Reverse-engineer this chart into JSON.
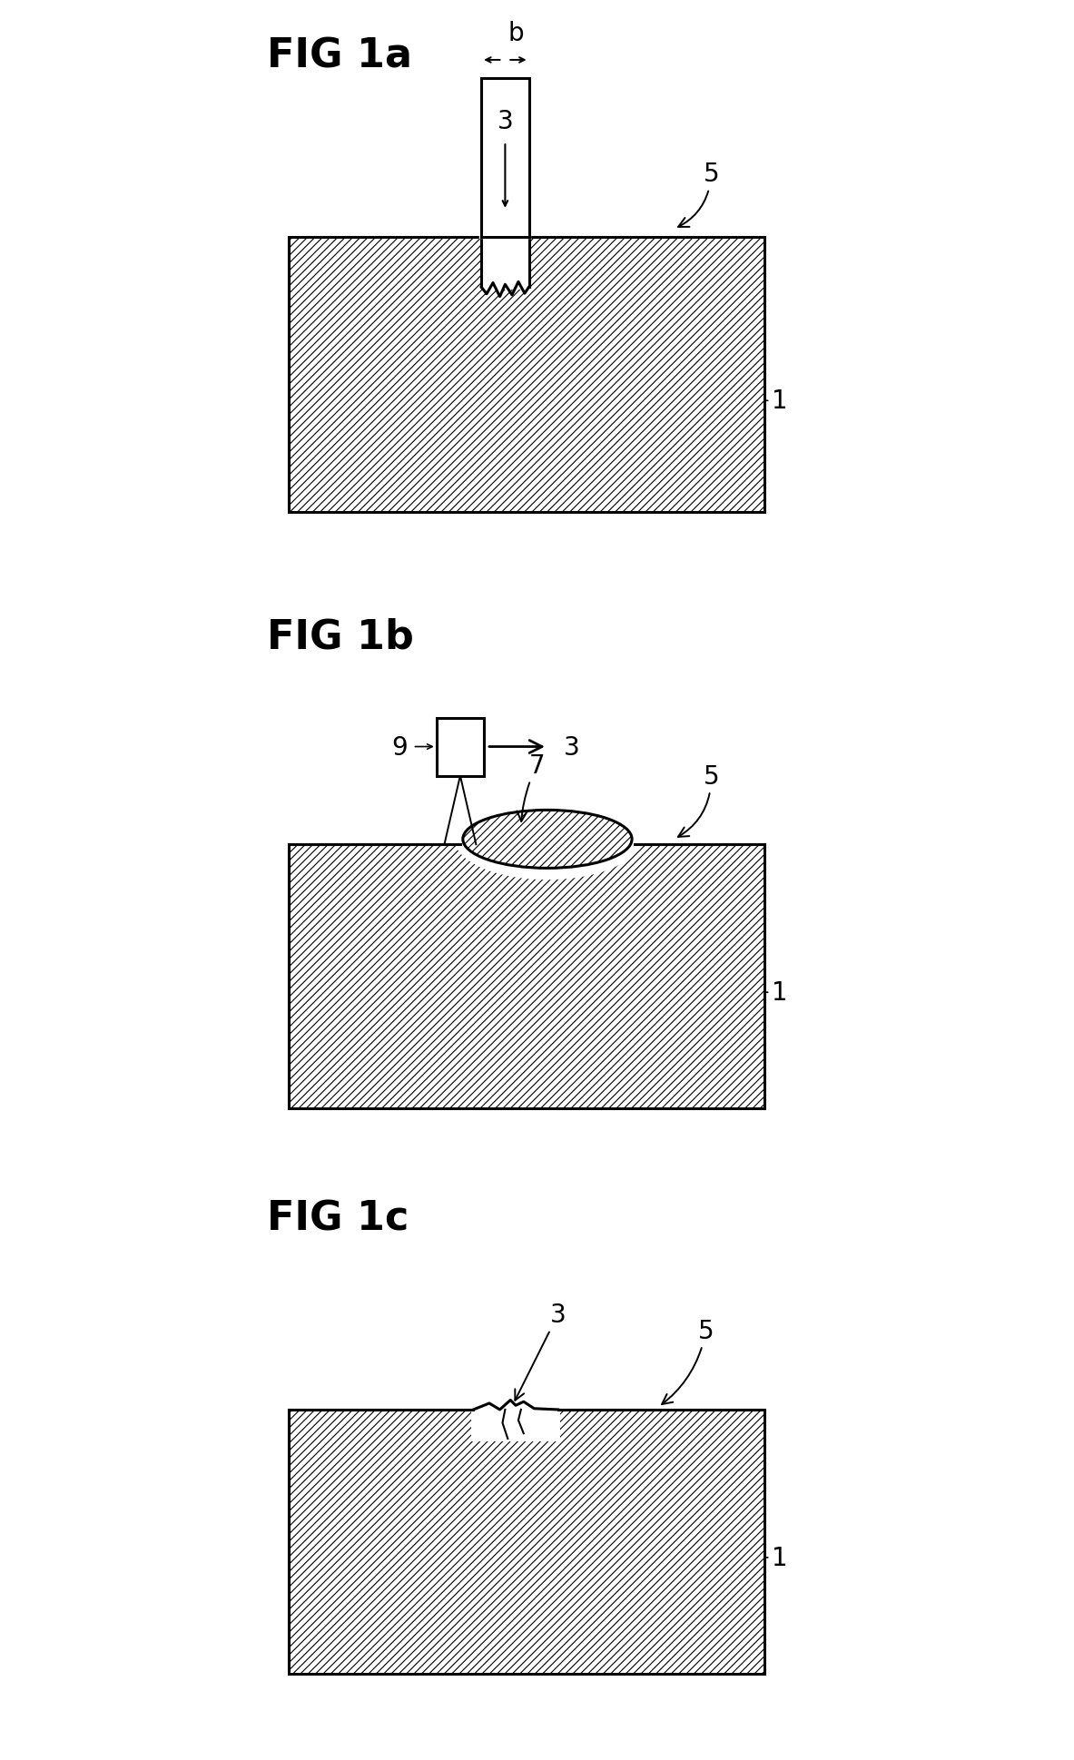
{
  "fig_labels": [
    "FIG 1a",
    "FIG 1b",
    "FIG 1c"
  ],
  "background_color": "#ffffff",
  "fig_label_fontsize": 32,
  "annotation_fontsize": 20,
  "lw_main": 2.0,
  "lw_thick": 2.2,
  "hatch_pattern": "////",
  "hatch_lw": 0.8
}
